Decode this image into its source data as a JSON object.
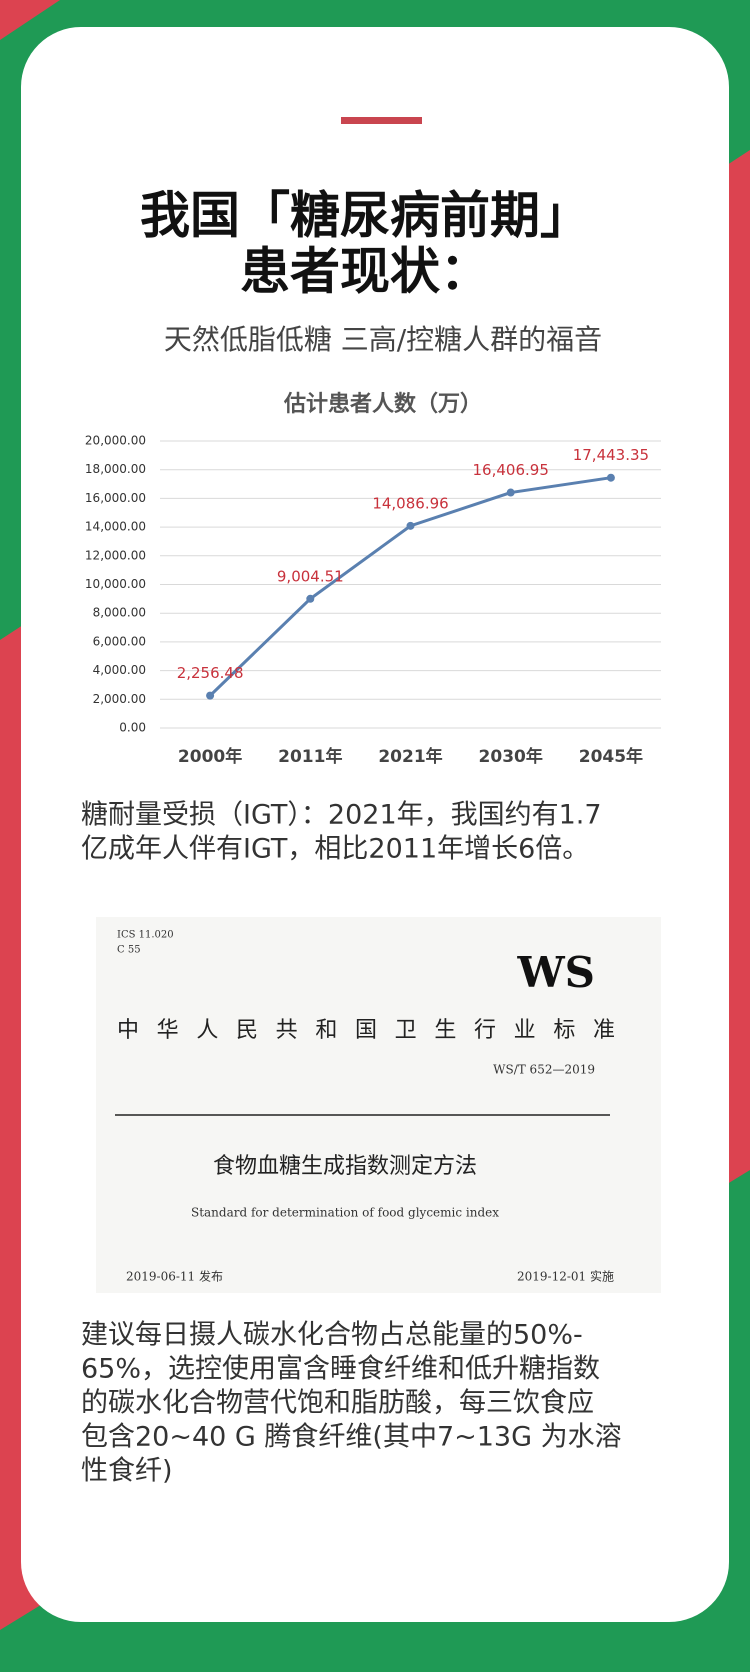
{
  "header": {
    "title_lines": [
      "我国「糖尿病前期」",
      "患者现状："
    ],
    "subtitle": "天然低脂低糖 三高/控糖人群的福音"
  },
  "chart_data": {
    "type": "line",
    "title": "估计患者人数（万）",
    "categories": [
      "2000年",
      "2011年",
      "2021年",
      "2030年",
      "2045年"
    ],
    "series": [
      {
        "name": "估计患者人数",
        "color": "#5a80b0",
        "values": [
          2256.48,
          9004.51,
          14086.96,
          16406.95,
          17443.35
        ],
        "value_labels": [
          "2,256.48",
          "9,004.51",
          "14,086.96",
          "16,406.95",
          "17,443.35"
        ]
      }
    ],
    "label_color": "#c8323c",
    "ylim": [
      0,
      20000
    ],
    "yticks": [
      {
        "value": 0,
        "label": "0.00"
      },
      {
        "value": 2000,
        "label": "2,000.00"
      },
      {
        "value": 4000,
        "label": "4,000.00"
      },
      {
        "value": 6000,
        "label": "6,000.00"
      },
      {
        "value": 8000,
        "label": "8,000.00"
      },
      {
        "value": 10000,
        "label": "10,000.00"
      },
      {
        "value": 12000,
        "label": "12,000.00"
      },
      {
        "value": 14000,
        "label": "14,000.00"
      },
      {
        "value": 16000,
        "label": "16,000.00"
      },
      {
        "value": 18000,
        "label": "18,000.00"
      },
      {
        "value": 20000,
        "label": "20,000.00"
      }
    ],
    "grid": true
  },
  "paragraph1": [
    "糖耐量受损（IGT）：2021年，我国约有1.7",
    "亿成年人伴有IGT，相比2011年增长6倍。"
  ],
  "document": {
    "ics": "ICS 11.020",
    "code": "C 55",
    "logo": "WS",
    "org": "中华人民共和国卫生行业标准",
    "number": "WS/T 652—2019",
    "title": "食物血糖生成指数测定方法",
    "title_en": "Standard for determination of food glycemic index",
    "published": "2019-06-11 发布",
    "implemented": "2019-12-01 实施"
  },
  "paragraph2": [
    "建议每日摄人碳水化合物占总能量的50%-",
    "65%，选控使用富含睡食纤维和低升糖指数",
    "的碳水化合物营代饱和脂肪酸，每三饮食应",
    "包含20~40 G 腾食纤维(其中7~13G 为水溶",
    "性食纤)"
  ]
}
